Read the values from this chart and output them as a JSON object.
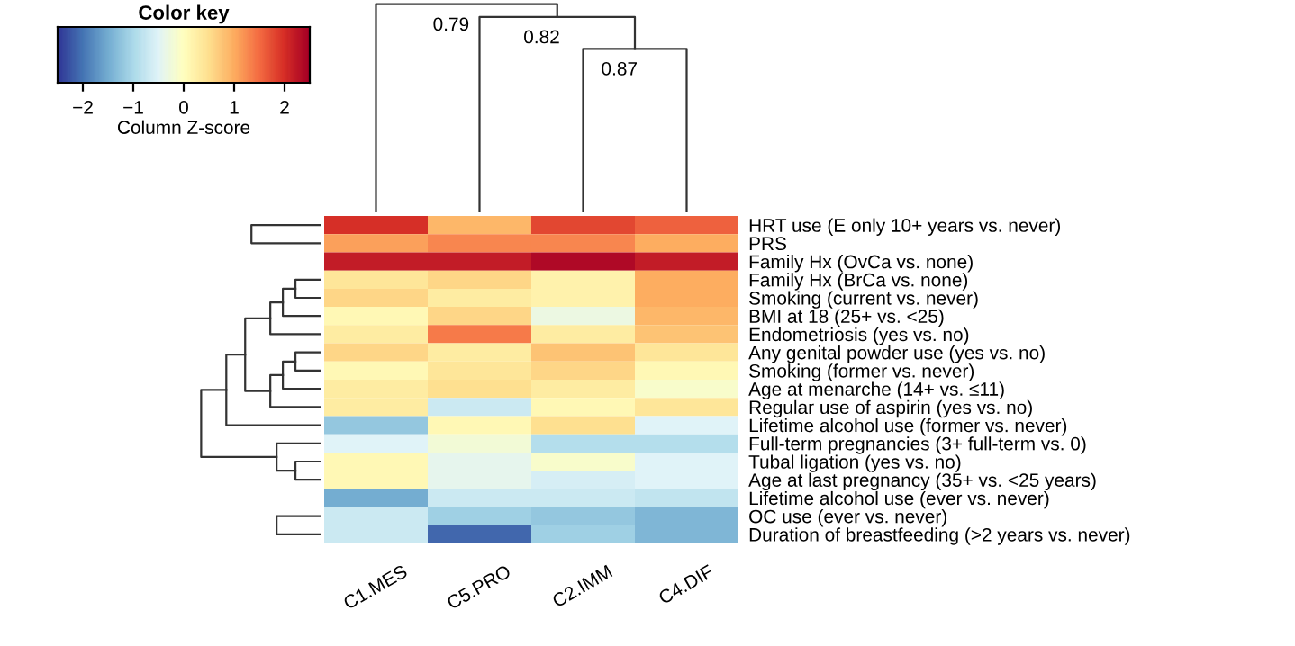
{
  "chart_data": {
    "type": "heatmap",
    "categories": [
      "C1.MES",
      "C5.PRO",
      "C2.IMM",
      "C4.DIF"
    ],
    "y_categories": [
      "HRT use (E only 10+ years vs. never)",
      "PRS",
      "Family Hx (OvCa vs. none)",
      "Family Hx (BrCa vs. none)",
      "Smoking (current vs. never)",
      "BMI at 18 (25+ vs. <25)",
      "Endometriosis (yes vs. no)",
      "Any genital powder use (yes vs. no)",
      "Smoking (former vs. never)",
      "Age at menarche (14+ vs. ≤11)",
      "Regular use of aspirin (yes vs. no)",
      "Lifetime alcohol use (former vs. never)",
      "Full-term pregnancies (3+ full-term vs. 0)",
      "Tubal ligation (yes vs. no)",
      "Age at last pregnancy (35+ vs. <25 years)",
      "Lifetime alcohol use (ever vs. never)",
      "OC use (ever vs. never)",
      "Duration of breastfeeding (>2 years vs. never)"
    ],
    "cells": [
      [
        2.0,
        0.9,
        1.8,
        1.6
      ],
      [
        1.1,
        1.3,
        1.3,
        1.0
      ],
      [
        2.2,
        2.2,
        2.4,
        2.2
      ],
      [
        0.4,
        0.6,
        0.2,
        1.0
      ],
      [
        0.6,
        0.3,
        0.2,
        1.0
      ],
      [
        0.1,
        0.6,
        -0.3,
        0.9
      ],
      [
        0.3,
        1.4,
        0.3,
        0.8
      ],
      [
        0.6,
        0.3,
        0.8,
        0.4
      ],
      [
        0.1,
        0.4,
        0.6,
        0.1
      ],
      [
        0.3,
        0.5,
        0.3,
        -0.1
      ],
      [
        0.3,
        -0.7,
        0.1,
        0.4
      ],
      [
        -1.2,
        0.1,
        0.5,
        -0.5
      ],
      [
        -0.5,
        -0.2,
        -0.9,
        -0.9
      ],
      [
        0.1,
        -0.4,
        -0.1,
        -0.5
      ],
      [
        0.1,
        -0.4,
        -0.6,
        -0.5
      ],
      [
        -1.5,
        -0.7,
        -0.7,
        -0.8
      ],
      [
        -0.7,
        -1.1,
        -1.2,
        -1.4
      ],
      [
        -0.7,
        -2.1,
        -1.1,
        -1.4
      ]
    ],
    "clim": [
      -2.5,
      2.5
    ],
    "cticks": [
      -2,
      -1,
      0,
      1,
      2
    ],
    "clabel": "Column Z-score",
    "legend_title": "Color key",
    "annotations": [
      "0.79",
      "0.82",
      "0.87"
    ]
  }
}
